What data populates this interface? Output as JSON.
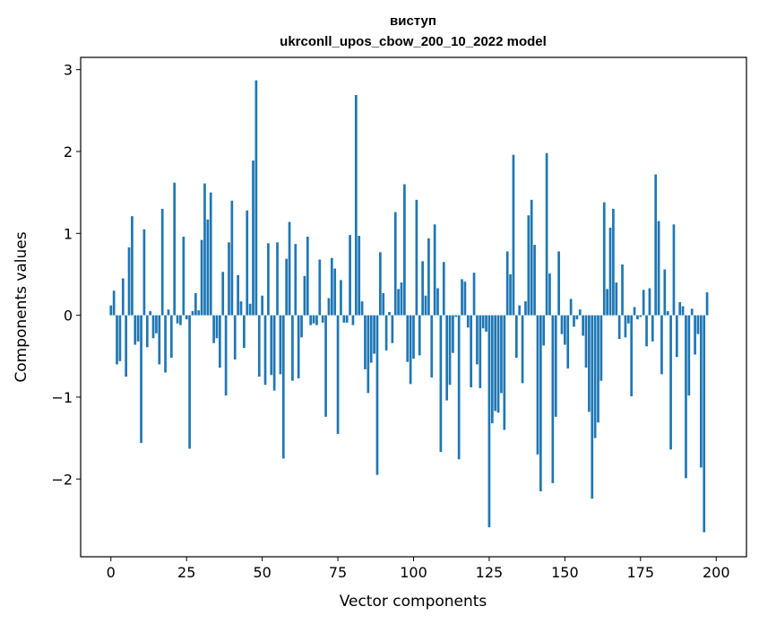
{
  "chart_data": {
    "type": "bar",
    "title": "виступ",
    "subtitle": "ukrconll_upos_cbow_200_10_2022 model",
    "xlabel": "Vector components",
    "ylabel": "Components values",
    "xlim": [
      -10,
      210
    ],
    "ylim": [
      -2.95,
      3.15
    ],
    "xticks": [
      0,
      25,
      50,
      75,
      100,
      125,
      150,
      175,
      200
    ],
    "yticks": [
      -2,
      -1,
      0,
      1,
      2,
      3
    ],
    "ytick_labels": [
      "−2",
      "−1",
      "0",
      "1",
      "2",
      "3"
    ],
    "grid": false,
    "legend": "none",
    "bar_color": "#1f77b4",
    "values": [
      0.12,
      0.3,
      -0.6,
      -0.56,
      0.45,
      -0.75,
      0.83,
      1.21,
      -0.36,
      -0.32,
      -1.56,
      1.05,
      -0.39,
      0.05,
      -0.28,
      -0.22,
      -0.6,
      1.3,
      -0.7,
      0.07,
      -0.52,
      1.62,
      -0.1,
      -0.12,
      0.96,
      -0.05,
      -1.63,
      0.05,
      0.27,
      0.06,
      0.92,
      1.61,
      1.17,
      1.5,
      -0.34,
      -0.28,
      -0.64,
      0.53,
      -0.98,
      0.89,
      1.4,
      -0.54,
      0.49,
      0.17,
      -0.4,
      1.28,
      0.14,
      1.89,
      2.87,
      -0.75,
      0.24,
      -0.85,
      0.88,
      -0.73,
      -0.92,
      0.89,
      -0.72,
      -1.75,
      0.69,
      1.14,
      -0.8,
      0.87,
      -0.77,
      -0.27,
      0.48,
      0.96,
      -0.12,
      -0.1,
      -0.12,
      0.68,
      -0.09,
      -1.24,
      0.21,
      0.7,
      0.57,
      -1.45,
      0.43,
      -0.09,
      -0.09,
      0.98,
      -0.12,
      2.69,
      0.97,
      0.17,
      -0.66,
      -0.95,
      -0.58,
      -0.47,
      -1.95,
      0.77,
      0.27,
      -0.43,
      0.04,
      -0.34,
      1.26,
      0.32,
      0.4,
      1.6,
      -0.57,
      -0.84,
      -0.53,
      1.41,
      -0.49,
      0.66,
      0.24,
      0.94,
      -0.76,
      1.11,
      0.33,
      -1.67,
      0.65,
      -1.04,
      -0.85,
      -0.46,
      -0.02,
      -1.76,
      0.44,
      0.41,
      -0.15,
      -0.88,
      0.52,
      -0.6,
      -0.89,
      -0.16,
      -0.2,
      -2.59,
      -1.32,
      -1.17,
      -1.19,
      -0.95,
      -1.4,
      0.78,
      0.5,
      1.96,
      -0.52,
      0.12,
      -0.83,
      0.17,
      1.22,
      1.41,
      0.86,
      -1.7,
      -2.15,
      -0.37,
      1.98,
      0.51,
      -2.05,
      -1.24,
      0.78,
      -0.23,
      -0.36,
      -0.65,
      0.2,
      -0.14,
      -0.05,
      0.07,
      -0.25,
      -0.64,
      -1.18,
      -2.24,
      -1.5,
      -1.31,
      -0.8,
      1.38,
      0.32,
      1.07,
      1.3,
      0.4,
      -0.29,
      0.62,
      -0.27,
      -0.1,
      -0.99,
      0.1,
      -0.05,
      -0.02,
      0.31,
      -0.38,
      0.33,
      -0.32,
      1.72,
      1.15,
      -0.72,
      0.56,
      0.05,
      -1.64,
      1.11,
      -0.51,
      0.16,
      0.11,
      -1.99,
      -0.98,
      0.08,
      -0.48,
      -0.23,
      -1.86,
      -2.65,
      0.28
    ]
  }
}
